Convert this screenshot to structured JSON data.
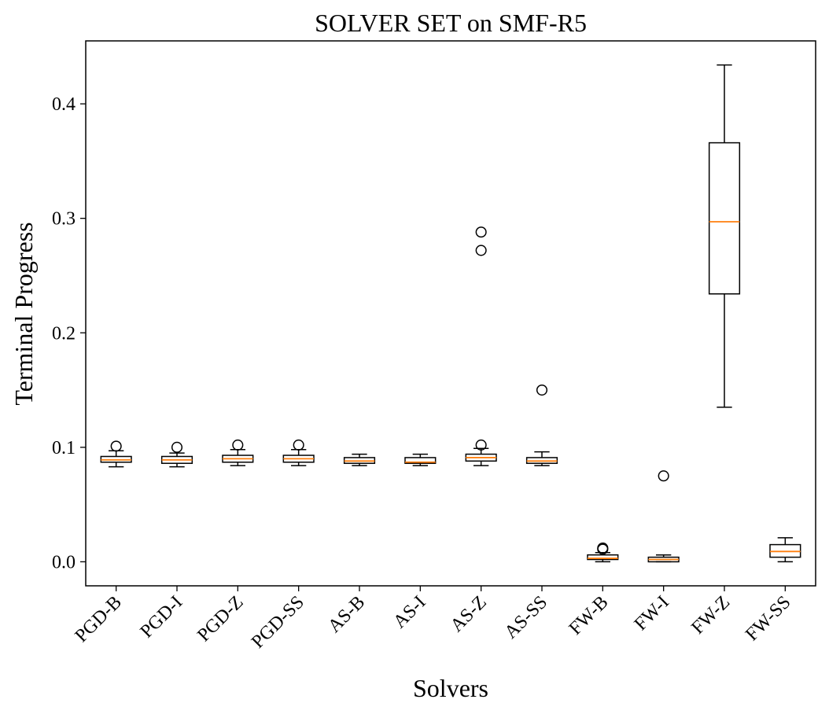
{
  "chart_data": {
    "type": "box",
    "title": "SOLVER SET on SMF-R5",
    "xlabel": "Solvers",
    "ylabel": "Terminal Progress",
    "ylim": [
      -0.021,
      0.455
    ],
    "yticks": [
      0.0,
      0.1,
      0.2,
      0.3,
      0.4
    ],
    "ytick_labels": [
      "0.0",
      "0.1",
      "0.2",
      "0.3",
      "0.4"
    ],
    "grid": false,
    "colors": {
      "box": "#000000",
      "median": "#ff7f0e",
      "background": "#ffffff"
    },
    "categories": [
      "PGD-B",
      "PGD-I",
      "PGD-Z",
      "PGD-SS",
      "AS-B",
      "AS-I",
      "AS-Z",
      "AS-SS",
      "FW-B",
      "FW-I",
      "FW-Z",
      "FW-SS"
    ],
    "boxes": [
      {
        "name": "PGD-B",
        "whisker_low": 0.083,
        "q1": 0.087,
        "median": 0.089,
        "q3": 0.092,
        "whisker_high": 0.097,
        "outliers": [
          0.101
        ]
      },
      {
        "name": "PGD-I",
        "whisker_low": 0.083,
        "q1": 0.086,
        "median": 0.089,
        "q3": 0.092,
        "whisker_high": 0.095,
        "outliers": [
          0.1
        ]
      },
      {
        "name": "PGD-Z",
        "whisker_low": 0.084,
        "q1": 0.087,
        "median": 0.09,
        "q3": 0.093,
        "whisker_high": 0.098,
        "outliers": [
          0.102
        ]
      },
      {
        "name": "PGD-SS",
        "whisker_low": 0.084,
        "q1": 0.087,
        "median": 0.09,
        "q3": 0.093,
        "whisker_high": 0.098,
        "outliers": [
          0.102
        ]
      },
      {
        "name": "AS-B",
        "whisker_low": 0.084,
        "q1": 0.086,
        "median": 0.088,
        "q3": 0.091,
        "whisker_high": 0.094,
        "outliers": []
      },
      {
        "name": "AS-I",
        "whisker_low": 0.084,
        "q1": 0.086,
        "median": 0.087,
        "q3": 0.091,
        "whisker_high": 0.094,
        "outliers": []
      },
      {
        "name": "AS-Z",
        "whisker_low": 0.084,
        "q1": 0.088,
        "median": 0.091,
        "q3": 0.094,
        "whisker_high": 0.099,
        "outliers": [
          0.102,
          0.272,
          0.288
        ]
      },
      {
        "name": "AS-SS",
        "whisker_low": 0.084,
        "q1": 0.086,
        "median": 0.088,
        "q3": 0.091,
        "whisker_high": 0.096,
        "outliers": [
          0.15
        ]
      },
      {
        "name": "FW-B",
        "whisker_low": 0.0,
        "q1": 0.002,
        "median": 0.003,
        "q3": 0.006,
        "whisker_high": 0.008,
        "outliers": [
          0.011,
          0.012
        ]
      },
      {
        "name": "FW-I",
        "whisker_low": 0.0,
        "q1": 0.0,
        "median": 0.002,
        "q3": 0.004,
        "whisker_high": 0.006,
        "outliers": [
          0.075
        ]
      },
      {
        "name": "FW-Z",
        "whisker_low": 0.135,
        "q1": 0.234,
        "median": 0.297,
        "q3": 0.366,
        "whisker_high": 0.434,
        "outliers": []
      },
      {
        "name": "FW-SS",
        "whisker_low": 0.0,
        "q1": 0.004,
        "median": 0.009,
        "q3": 0.015,
        "whisker_high": 0.021,
        "outliers": []
      }
    ]
  }
}
